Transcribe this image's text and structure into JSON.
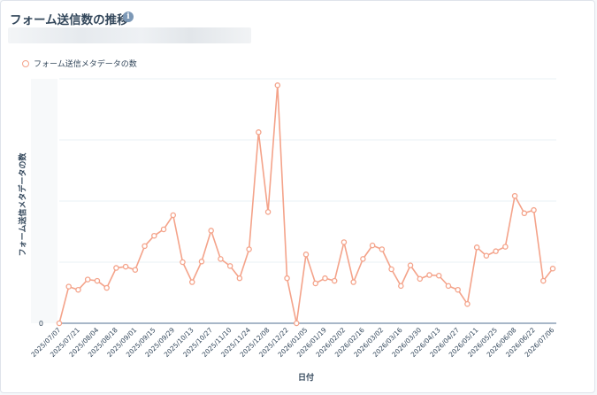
{
  "header": {
    "title": "フォーム送信数の推移",
    "info_icon": "info-icon"
  },
  "colors": {
    "series": "#f4a38a",
    "axis": "#516f90",
    "grid": "#eaf0f6",
    "text": "#33475b"
  },
  "chart_data": {
    "type": "line",
    "title": "フォーム送信数の推移",
    "xlabel": "日付",
    "ylabel": "フォーム送信メタデータの数",
    "legend_position": "top-left",
    "grid": true,
    "y_tick_labels": [
      "0"
    ],
    "x_tick_labels": [
      "2025/07/07",
      "2025/07/21",
      "2025/08/04",
      "2025/08/18",
      "2025/09/01",
      "2025/09/15",
      "2025/09/29",
      "2025/10/13",
      "2025/10/27",
      "2025/11/10",
      "2025/11/24",
      "2025/12/08",
      "2025/12/22",
      "2026/01/05",
      "2026/01/19",
      "2026/02/02",
      "2026/02/16",
      "2026/03/02",
      "2026/03/16",
      "2026/03/30",
      "2026/04/13",
      "2026/04/27",
      "2026/05/11",
      "2026/05/25",
      "2026/06/08",
      "2026/06/22",
      "2026/07/06"
    ],
    "ylim": [
      0,
      380
    ],
    "series": [
      {
        "name": "フォーム送信メタデータの数",
        "values": [
          0,
          57,
          52,
          68,
          66,
          55,
          86,
          88,
          83,
          120,
          136,
          146,
          168,
          95,
          64,
          96,
          144,
          100,
          89,
          70,
          115,
          297,
          173,
          370,
          70,
          0,
          107,
          62,
          70,
          66,
          126,
          64,
          100,
          121,
          115,
          84,
          58,
          90,
          69,
          75,
          74,
          58,
          52,
          30,
          118,
          105,
          112,
          119,
          198,
          171,
          176,
          66,
          85
        ]
      }
    ]
  }
}
